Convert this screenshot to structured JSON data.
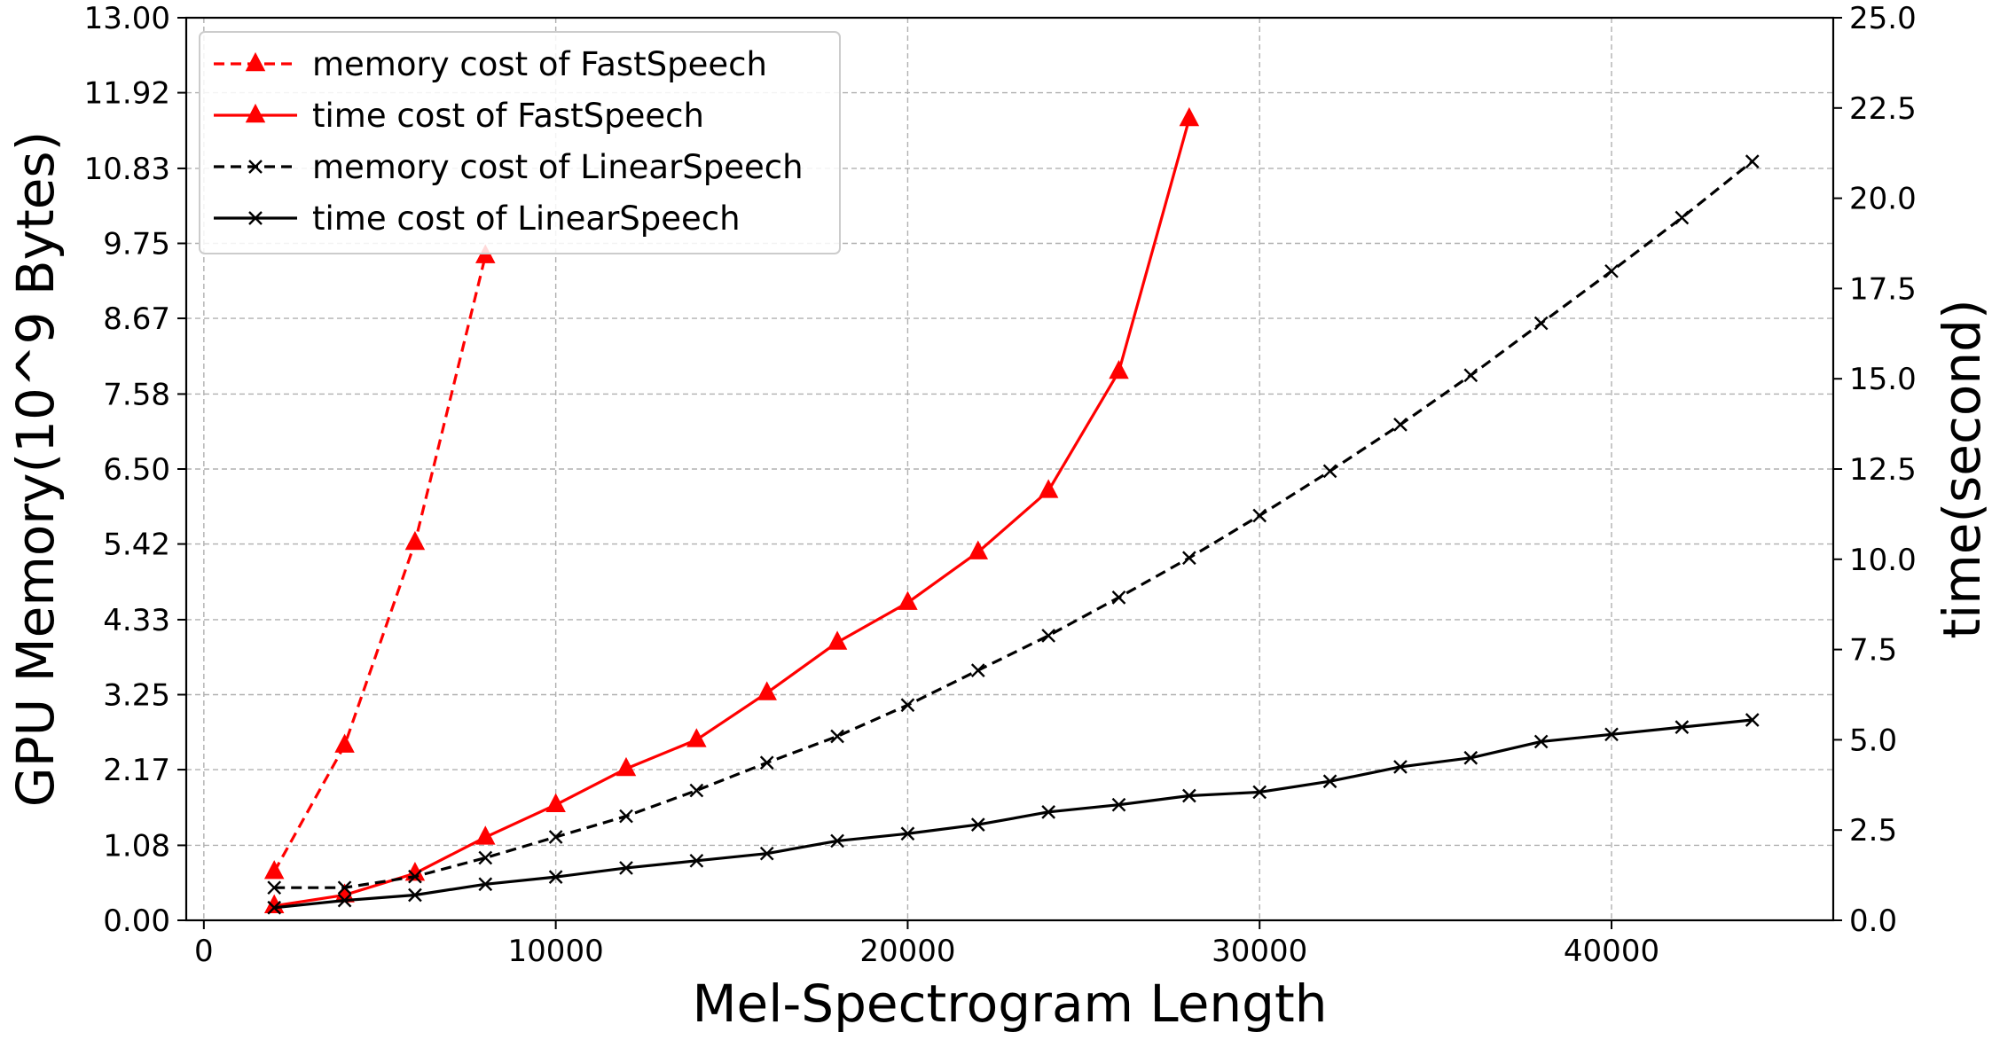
{
  "chart_data": {
    "type": "line",
    "xlabel": "Mel-Spectrogram Length",
    "ylabel_left": "GPU Memory(10^9 Bytes)",
    "ylabel_right": "time(second)",
    "xlim": [
      -500,
      46300
    ],
    "xticks": [
      0,
      10000,
      20000,
      30000,
      40000
    ],
    "ylim_left": [
      0,
      13
    ],
    "yticks_left": [
      "0.00",
      "1.08",
      "2.17",
      "3.25",
      "4.33",
      "5.42",
      "6.50",
      "7.58",
      "8.67",
      "9.75",
      "10.83",
      "11.92",
      "13.00"
    ],
    "ylim_right": [
      0,
      25
    ],
    "yticks_right": [
      "0.0",
      "2.5",
      "5.0",
      "7.5",
      "10.0",
      "12.5",
      "15.0",
      "17.5",
      "20.0",
      "22.5",
      "25.0"
    ],
    "grid": true,
    "legend_position": "top-left",
    "series": [
      {
        "name": "memory cost of FastSpeech",
        "axis": "left",
        "color": "#ff0000",
        "line_style": "dashed",
        "marker": "triangle",
        "x": [
          2000,
          4000,
          6000,
          8000
        ],
        "y": [
          0.7,
          2.52,
          5.44,
          9.57
        ]
      },
      {
        "name": "time cost of FastSpeech",
        "axis": "right",
        "color": "#ff0000",
        "line_style": "solid",
        "marker": "triangle",
        "x": [
          2000,
          4000,
          6000,
          8000,
          10000,
          12000,
          14000,
          16000,
          18000,
          20000,
          22000,
          24000,
          26000,
          28000
        ],
        "y": [
          0.4,
          0.7,
          1.3,
          2.3,
          3.2,
          4.2,
          5.0,
          6.3,
          7.7,
          8.8,
          10.2,
          11.9,
          15.2,
          22.2
        ]
      },
      {
        "name": "memory cost of LinearSpeech",
        "axis": "left",
        "color": "#000000",
        "line_style": "dashed",
        "marker": "x",
        "x": [
          2000,
          4000,
          6000,
          8000,
          10000,
          12000,
          14000,
          16000,
          18000,
          20000,
          22000,
          24000,
          26000,
          28000,
          30000,
          32000,
          34000,
          36000,
          38000,
          40000,
          42000,
          44000
        ],
        "y": [
          0.47,
          0.47,
          0.63,
          0.9,
          1.2,
          1.5,
          1.87,
          2.27,
          2.65,
          3.1,
          3.6,
          4.1,
          4.65,
          5.22,
          5.83,
          6.47,
          7.14,
          7.85,
          8.6,
          9.35,
          10.12,
          10.93
        ]
      },
      {
        "name": "time cost of LinearSpeech",
        "axis": "right",
        "color": "#000000",
        "line_style": "solid",
        "marker": "x",
        "x": [
          2000,
          4000,
          6000,
          8000,
          10000,
          12000,
          14000,
          16000,
          18000,
          20000,
          22000,
          24000,
          26000,
          28000,
          30000,
          32000,
          34000,
          36000,
          38000,
          40000,
          42000,
          44000
        ],
        "y": [
          0.35,
          0.55,
          0.7,
          1.0,
          1.2,
          1.45,
          1.65,
          1.85,
          2.2,
          2.4,
          2.65,
          3.0,
          3.2,
          3.45,
          3.55,
          3.85,
          4.25,
          4.5,
          4.95,
          5.15,
          5.35,
          5.55
        ]
      }
    ]
  }
}
